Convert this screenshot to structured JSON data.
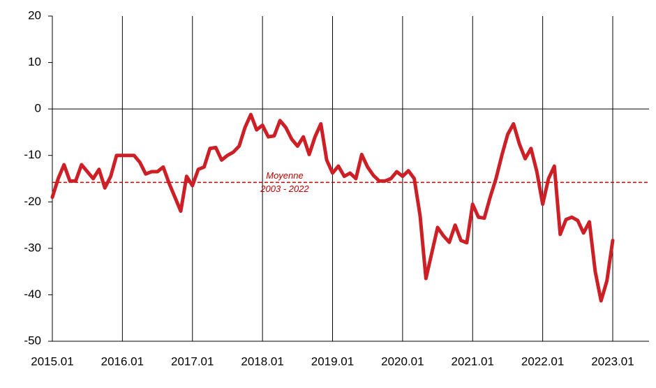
{
  "chart_data": {
    "type": "line",
    "categories": [
      "2015.01",
      null,
      null,
      null,
      null,
      null,
      null,
      null,
      null,
      null,
      null,
      null,
      "2016.01",
      null,
      null,
      null,
      null,
      null,
      null,
      null,
      null,
      null,
      null,
      null,
      "2017.01",
      null,
      null,
      null,
      null,
      null,
      null,
      null,
      null,
      null,
      null,
      null,
      "2018.01",
      null,
      null,
      null,
      null,
      null,
      null,
      null,
      null,
      null,
      null,
      null,
      "2019.01",
      null,
      null,
      null,
      null,
      null,
      null,
      null,
      null,
      null,
      null,
      null,
      "2020.01",
      null,
      null,
      null,
      null,
      null,
      null,
      null,
      null,
      null,
      null,
      null,
      "2021.01",
      null,
      null,
      null,
      null,
      null,
      null,
      null,
      null,
      null,
      null,
      null,
      "2022.01",
      null,
      null,
      null,
      null,
      null,
      null,
      null,
      null,
      null,
      null,
      null,
      "2023.01"
    ],
    "series": [
      {
        "color": "#cc1f26",
        "values": [
          -19,
          -15,
          -12,
          -15.5,
          -15.5,
          -12,
          -13.5,
          -15,
          -13,
          -17,
          -14.5,
          -10,
          -10,
          -10,
          -10,
          -11.5,
          -14,
          -13.5,
          -13.5,
          -12.5,
          -16,
          -19,
          -22,
          -14.5,
          -16.5,
          -13,
          -12.5,
          -8.5,
          -8.3,
          -11,
          -10,
          -9.3,
          -8,
          -4,
          -1.2,
          -4.5,
          -3.5,
          -6,
          -5.8,
          -2.5,
          -4,
          -6.5,
          -8,
          -6,
          -9.8,
          -6,
          -3.2,
          -11,
          -13.8,
          -12.3,
          -14.5,
          -13.8,
          -15,
          -9.8,
          -12.5,
          -14.3,
          -15.5,
          -15.5,
          -15,
          -13.5,
          -14.5,
          -13.3,
          -15,
          -23,
          -36.5,
          -31,
          -25.5,
          -27.3,
          -28.7,
          -25,
          -28.3,
          -28.8,
          -20.5,
          -23.3,
          -23.5,
          -19,
          -15,
          -10,
          -5.5,
          -3.2,
          -7.5,
          -10.7,
          -8.5,
          -13.5,
          -20.5,
          -15,
          -12.3,
          -27,
          -23.8,
          -23.3,
          -24,
          -26.7,
          -24.3,
          -35,
          -41.3,
          -37,
          -28.3
        ]
      }
    ],
    "ylim": [
      -50,
      20
    ],
    "yticks": [
      20,
      10,
      0,
      -10,
      -20,
      -30,
      -40,
      -50
    ],
    "reference_line": {
      "value": -15.8,
      "color": "#c00000",
      "labels": [
        "Moyenne",
        "2003 - 2022"
      ]
    },
    "grid": true
  }
}
